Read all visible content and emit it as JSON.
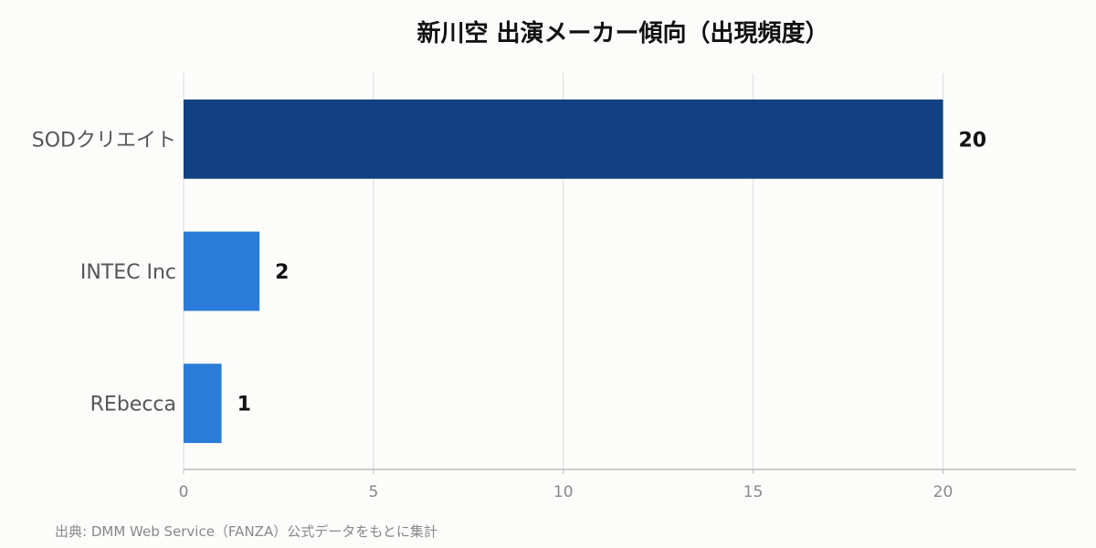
{
  "chart_data": {
    "type": "bar",
    "orientation": "horizontal",
    "title": "新川空 出演メーカー傾向（出現頻度）",
    "categories": [
      "SODクリエイト",
      "INTEC Inc",
      "REbecca"
    ],
    "values": [
      20,
      2,
      1
    ],
    "xlabel": "",
    "ylabel": "",
    "xlim": [
      0,
      23.5
    ],
    "xticks": [
      0,
      5,
      10,
      15,
      20
    ],
    "grid": true,
    "legend": "none",
    "colors": {
      "top_bar": "#114183",
      "other_bars": "#2b7bd8",
      "grid": "#dddddd",
      "axis": "#bbbbbb"
    }
  },
  "source_note": "出典: DMM Web Service（FANZA）公式データをもとに集計"
}
